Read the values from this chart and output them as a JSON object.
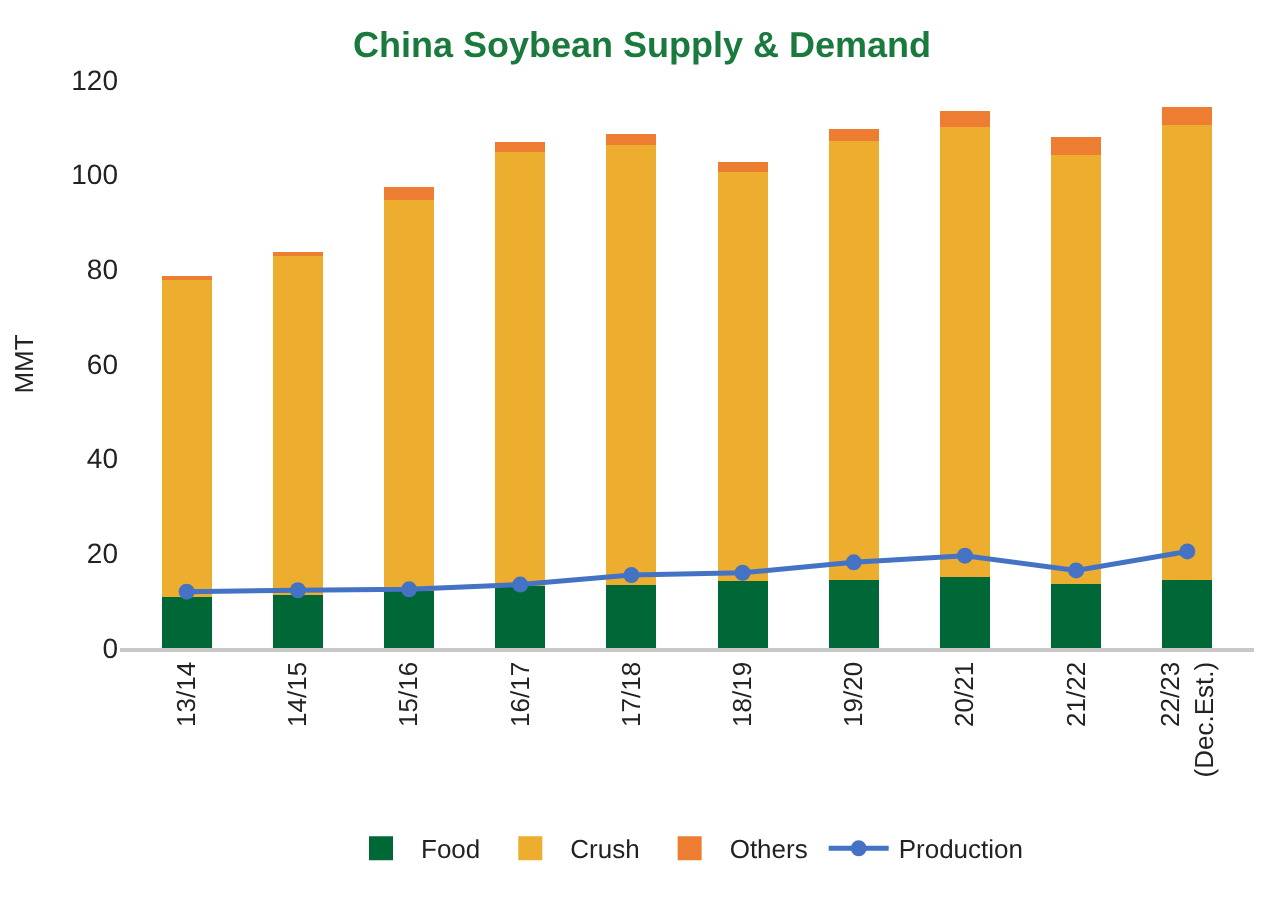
{
  "chart_data": {
    "type": "bar",
    "title": "China Soybean Supply & Demand",
    "ylabel": "MMT",
    "categories": [
      "13/14",
      "14/15",
      "15/16",
      "16/17",
      "17/18",
      "18/19",
      "19/20",
      "20/21",
      "21/22",
      "22/23\n(Dec.Est.)"
    ],
    "stacked": true,
    "ylim": [
      0,
      120
    ],
    "yticks": [
      0,
      20,
      40,
      60,
      80,
      100,
      120
    ],
    "grid": false,
    "legend": "bottom",
    "series": [
      {
        "name": "Food",
        "color": "#006837",
        "values": [
          10.7,
          11.1,
          12.0,
          13.0,
          13.3,
          14.1,
          14.4,
          15.0,
          13.6,
          14.3
        ]
      },
      {
        "name": "Crush",
        "color": "#edae2f",
        "values": [
          67.1,
          72.1,
          82.7,
          91.7,
          92.9,
          86.5,
          92.7,
          95.1,
          90.6,
          96.2
        ]
      },
      {
        "name": "Others",
        "color": "#ed7d31",
        "values": [
          0.5,
          0.5,
          2.8,
          2.1,
          2.4,
          2.1,
          2.5,
          3.3,
          3.8,
          3.9
        ]
      },
      {
        "name": "Production",
        "type": "line",
        "marker": "circle",
        "line_style": "solid",
        "color": "#4472c4",
        "values": [
          11.9,
          12.2,
          12.4,
          13.4,
          15.4,
          15.9,
          18.1,
          19.5,
          16.4,
          20.4
        ]
      }
    ]
  }
}
